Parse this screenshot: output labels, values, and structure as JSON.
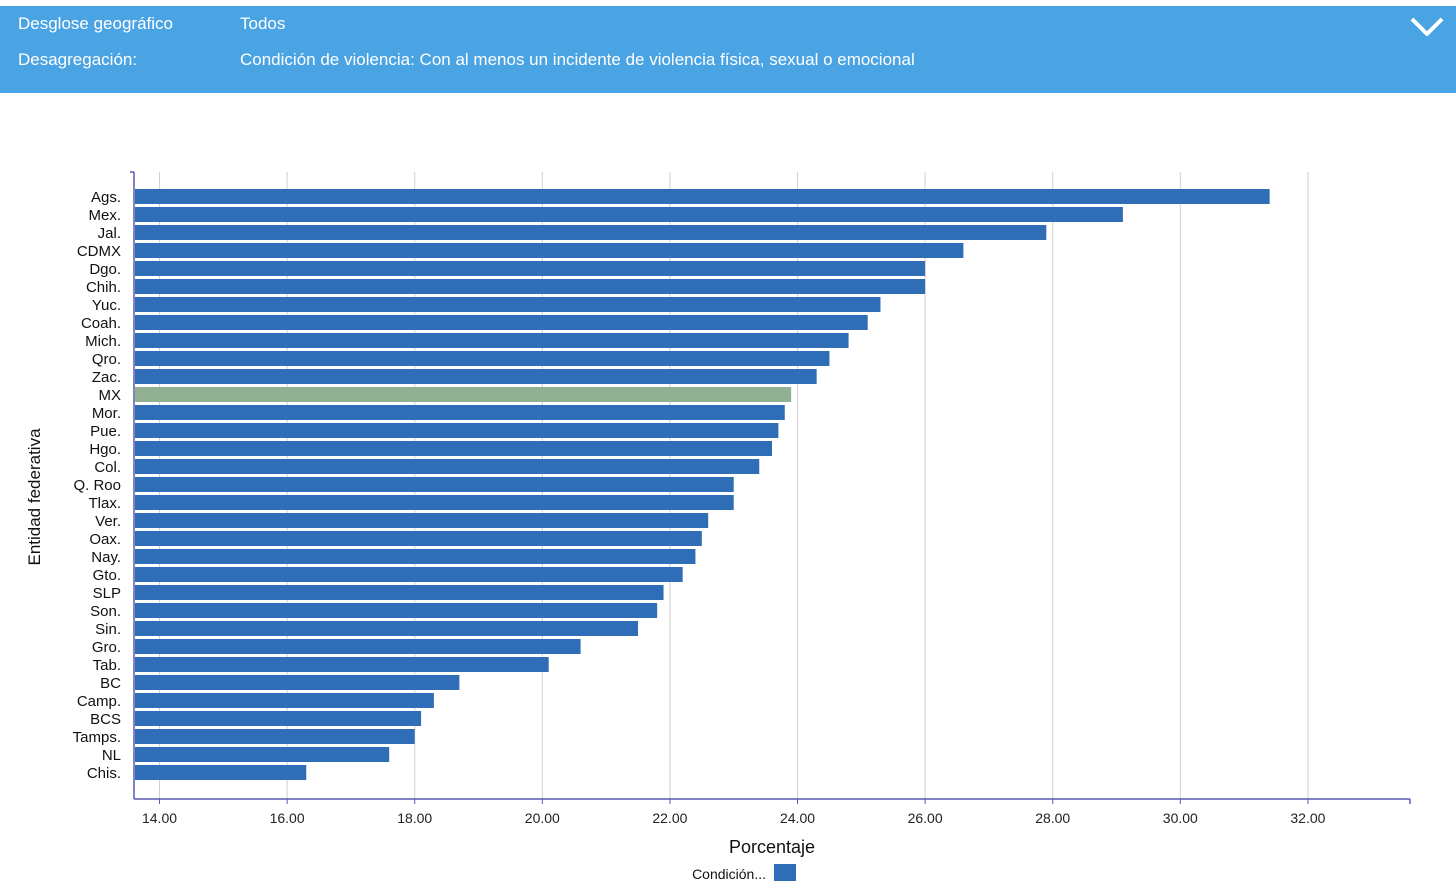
{
  "filters": {
    "geo_label": "Desglose geográfico",
    "geo_value": "Todos",
    "disagg_label": "Desagregación:",
    "disagg_value": "Condición de violencia: Con al menos un incidente de violencia física, sexual o emocional"
  },
  "collapse_icon": "chevron-down-icon",
  "colors": {
    "bar": "#2f6db6",
    "highlight": "#92b092",
    "header": "#4aa3e3",
    "axis": "#5a5ab0",
    "grid": "#cfcfcf"
  },
  "chart_data": {
    "type": "bar",
    "orientation": "horizontal",
    "xlabel": "Porcentaje",
    "ylabel": "Entidad federativa",
    "xlim": [
      13.6,
      33.6
    ],
    "x_ticks": [
      "14.00",
      "16.00",
      "18.00",
      "20.00",
      "22.00",
      "24.00",
      "26.00",
      "28.00",
      "30.00",
      "32.00"
    ],
    "categories": [
      "Ags.",
      "Mex.",
      "Jal.",
      "CDMX",
      "Dgo.",
      "Chih.",
      "Yuc.",
      "Coah.",
      "Mich.",
      "Qro.",
      "Zac.",
      "MX",
      "Mor.",
      "Pue.",
      "Hgo.",
      "Col.",
      "Q. Roo",
      "Tlax.",
      "Ver.",
      "Oax.",
      "Nay.",
      "Gto.",
      "SLP",
      "Son.",
      "Sin.",
      "Gro.",
      "Tab.",
      "BC",
      "Camp.",
      "BCS",
      "Tamps.",
      "NL",
      "Chis."
    ],
    "values": [
      31.4,
      29.1,
      27.9,
      26.6,
      26.0,
      26.0,
      25.3,
      25.1,
      24.8,
      24.5,
      24.3,
      23.9,
      23.8,
      23.7,
      23.6,
      23.4,
      23.0,
      23.0,
      22.6,
      22.5,
      22.4,
      22.2,
      21.9,
      21.8,
      21.5,
      20.6,
      20.1,
      18.7,
      18.3,
      18.1,
      18.0,
      17.6,
      16.3
    ],
    "highlight_category": "MX",
    "legend": {
      "label": "Condición...",
      "placement": "bottom"
    },
    "grid": true
  }
}
